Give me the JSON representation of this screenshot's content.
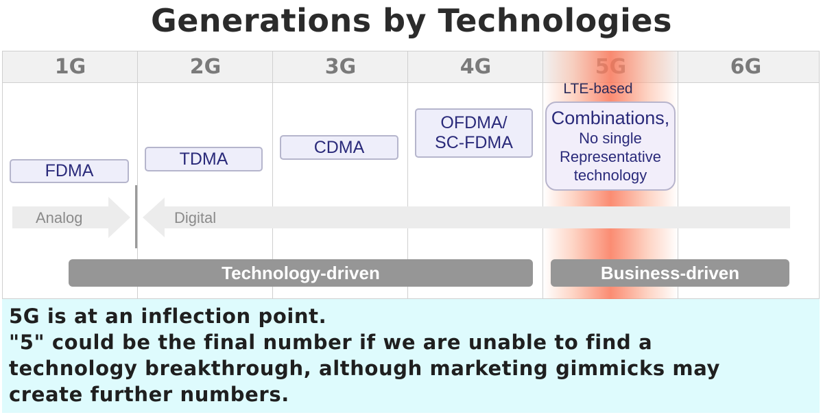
{
  "title": "Generations by Technologies",
  "generations": [
    "1G",
    "2G",
    "3G",
    "4G",
    "5G",
    "6G"
  ],
  "technologies": {
    "fdma": "FDMA",
    "tdma": "TDMA",
    "cdma": "CDMA",
    "ofdma_line1": "OFDMA/",
    "ofdma_line2": "SC-FDMA",
    "lte_based": "LTE-based",
    "combo_line1": "Combinations,",
    "combo_line2": "No single",
    "combo_line3": "Representative",
    "combo_line4": "technology"
  },
  "signal": {
    "analog": "Analog",
    "digital": "Digital"
  },
  "drivers": {
    "technology": "Technology-driven",
    "business": "Business-driven"
  },
  "note": {
    "line1": "5G is at an inflection point.",
    "line2": "\"5\" could be the final number if we are unable to find a",
    "line3": "technology breakthrough, although marketing gimmicks may",
    "line4": "create further numbers."
  },
  "colors": {
    "header_bg": "#f1f1f1",
    "highlight": "#fa785a",
    "tech_box_bg": "#eeeefa",
    "tech_text": "#2a2a7a",
    "driven_bar": "#969696",
    "note_bg": "#defbfd"
  }
}
